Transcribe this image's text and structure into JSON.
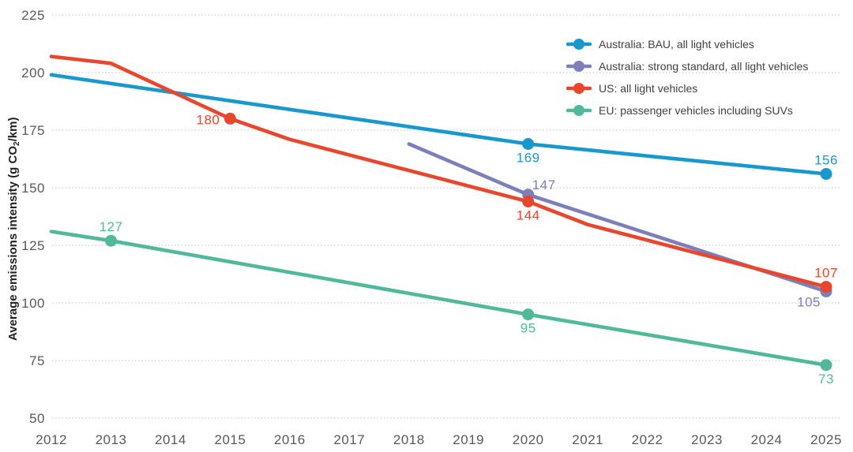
{
  "chart_data": {
    "type": "line",
    "title": "",
    "xlabel": "",
    "ylabel": "Average emissions intensity (g CO₂/km)",
    "ylabel_parts": {
      "pre": "Average emissions intensity (g CO",
      "sub": "2",
      "post": "/km)"
    },
    "xlim": [
      2012,
      2025
    ],
    "ylim": [
      50,
      225
    ],
    "x_ticks": [
      2012,
      2013,
      2014,
      2015,
      2016,
      2017,
      2018,
      2019,
      2020,
      2021,
      2022,
      2023,
      2024,
      2025
    ],
    "y_ticks": [
      50,
      75,
      100,
      125,
      150,
      175,
      200,
      225
    ],
    "grid": "horizontal dotted lines",
    "legend_position": "top-right",
    "axis_text_color": "#58595b",
    "legend_text_color": "#414042",
    "grid_color": "#c9c9c9",
    "series": [
      {
        "name": "Australia: BAU, all light vehicles",
        "color": "#1898CD",
        "points": [
          {
            "x": 2012,
            "y": 199
          },
          {
            "x": 2020,
            "y": 169,
            "label": "169",
            "label_pos": "below"
          },
          {
            "x": 2025,
            "y": 156,
            "label": "156",
            "label_pos": "above"
          }
        ]
      },
      {
        "name": "Australia: strong standard, all light vehicles",
        "color": "#7C7FB9",
        "points": [
          {
            "x": 2018,
            "y": 169
          },
          {
            "x": 2020,
            "y": 147,
            "label": "147",
            "label_pos": "above-right"
          },
          {
            "x": 2025,
            "y": 105,
            "label": "105",
            "label_pos": "below-left"
          }
        ]
      },
      {
        "name": "US: all light vehicles",
        "color": "#E8462D",
        "points": [
          {
            "x": 2012,
            "y": 207
          },
          {
            "x": 2013,
            "y": 204
          },
          {
            "x": 2015,
            "y": 180,
            "label": "180",
            "label_pos": "left"
          },
          {
            "x": 2016,
            "y": 171
          },
          {
            "x": 2020,
            "y": 144,
            "label": "144",
            "label_pos": "below"
          },
          {
            "x": 2021,
            "y": 134
          },
          {
            "x": 2025,
            "y": 107,
            "label": "107",
            "label_pos": "above"
          }
        ]
      },
      {
        "name": "EU: passenger vehicles including SUVs",
        "color": "#50B999",
        "points": [
          {
            "x": 2012,
            "y": 131
          },
          {
            "x": 2013,
            "y": 127,
            "label": "127",
            "label_pos": "above"
          },
          {
            "x": 2020,
            "y": 95,
            "label": "95",
            "label_pos": "below"
          },
          {
            "x": 2025,
            "y": 73,
            "label": "73",
            "label_pos": "below"
          }
        ]
      }
    ]
  }
}
